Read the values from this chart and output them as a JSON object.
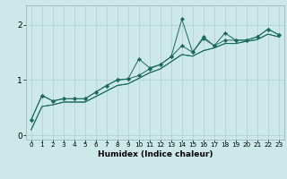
{
  "xlabel": "Humidex (Indice chaleur)",
  "bg_color": "#cce8e8",
  "line_color": "#1a6b5a",
  "grid_color_major": "#aad0d0",
  "grid_color_minor": "#aad0d0",
  "xlim": [
    -0.5,
    23.5
  ],
  "ylim": [
    -0.08,
    2.35
  ],
  "xticks": [
    0,
    1,
    2,
    3,
    4,
    5,
    6,
    7,
    8,
    9,
    10,
    11,
    12,
    13,
    14,
    15,
    16,
    17,
    18,
    19,
    20,
    21,
    22,
    23
  ],
  "yticks": [
    0,
    1,
    2
  ],
  "series_with_markers": [
    [
      0.28,
      0.72,
      0.62,
      0.66,
      0.66,
      0.66,
      0.78,
      0.9,
      1.0,
      1.02,
      1.08,
      1.2,
      1.28,
      1.42,
      2.1,
      1.5,
      1.75,
      1.62,
      1.72,
      1.72,
      1.72,
      1.78,
      1.92,
      1.82
    ],
    [
      0.28,
      0.72,
      0.62,
      0.66,
      0.66,
      0.66,
      0.78,
      0.9,
      1.0,
      1.02,
      1.38,
      1.22,
      1.28,
      1.42,
      1.62,
      1.5,
      1.78,
      1.62,
      1.85,
      1.72,
      1.72,
      1.78,
      1.92,
      1.82
    ]
  ],
  "series_plain": [
    [
      0.1,
      0.52,
      0.55,
      0.6,
      0.6,
      0.6,
      0.7,
      0.8,
      0.9,
      0.93,
      1.03,
      1.13,
      1.2,
      1.33,
      1.46,
      1.43,
      1.53,
      1.58,
      1.66,
      1.66,
      1.7,
      1.73,
      1.83,
      1.78
    ],
    [
      0.1,
      0.52,
      0.55,
      0.6,
      0.6,
      0.6,
      0.7,
      0.8,
      0.9,
      0.93,
      1.03,
      1.13,
      1.2,
      1.33,
      1.46,
      1.43,
      1.53,
      1.58,
      1.66,
      1.66,
      1.7,
      1.73,
      1.83,
      1.78
    ]
  ]
}
